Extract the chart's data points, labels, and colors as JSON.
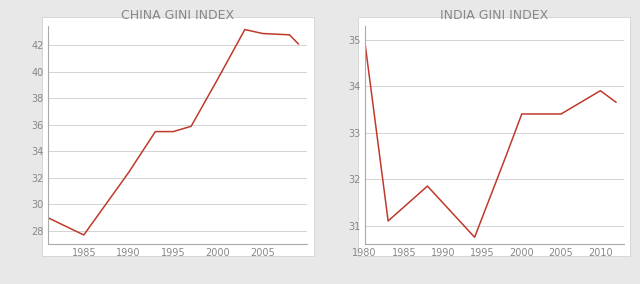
{
  "china": {
    "title": "CHINA GINI INDEX",
    "x": [
      1981,
      1985,
      1990,
      1993,
      1995,
      1997,
      2000,
      2003,
      2005,
      2008,
      2009
    ],
    "y": [
      29.0,
      27.7,
      32.4,
      35.5,
      35.5,
      35.9,
      39.5,
      43.2,
      42.9,
      42.8,
      42.1
    ],
    "xlim": [
      1981,
      2010
    ],
    "ylim": [
      27.0,
      43.5
    ],
    "xticks": [
      1985,
      1990,
      1995,
      2000,
      2005
    ],
    "yticks": [
      28,
      30,
      32,
      34,
      36,
      38,
      40,
      42
    ]
  },
  "india": {
    "title": "INDIA GINI INDEX",
    "x": [
      1980,
      1983,
      1988,
      1994,
      1998,
      2000,
      2005,
      2010,
      2012
    ],
    "y": [
      35.0,
      31.1,
      31.85,
      30.75,
      32.5,
      33.4,
      33.4,
      33.9,
      33.65
    ],
    "xlim": [
      1980,
      2013
    ],
    "ylim": [
      30.6,
      35.3
    ],
    "xticks": [
      1980,
      1985,
      1990,
      1995,
      2000,
      2005,
      2010
    ],
    "yticks": [
      31,
      32,
      33,
      34,
      35
    ]
  },
  "line_color": "#c0392b",
  "outer_bg": "#e8e8e8",
  "panel_bg": "#ffffff",
  "title_fontsize": 9,
  "title_color": "#888888",
  "tick_color": "#888888",
  "tick_fontsize": 7,
  "grid_color": "#cccccc",
  "spine_color": "#aaaaaa"
}
